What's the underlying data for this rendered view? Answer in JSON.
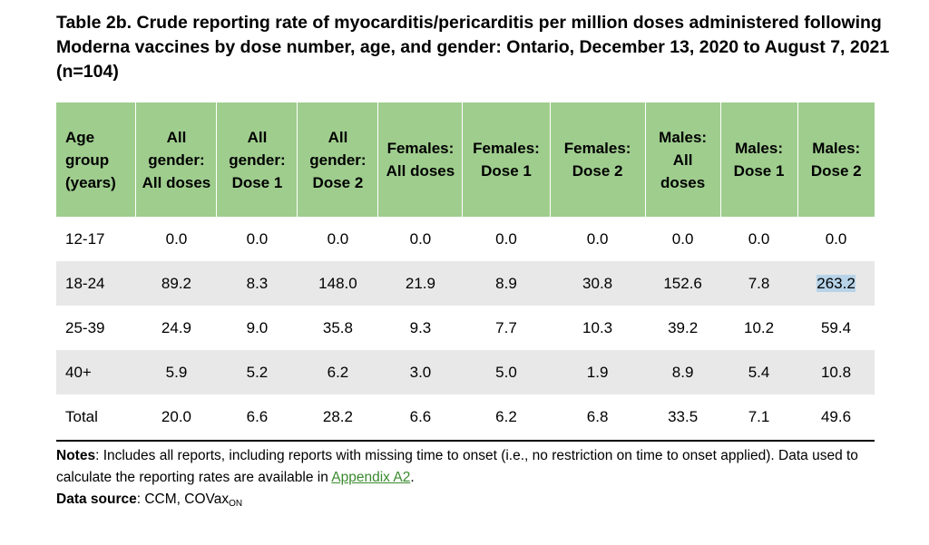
{
  "title": "Table 2b. Crude reporting rate of myocarditis/pericarditis per million doses administered following Moderna vaccines by dose number, age, and gender: Ontario, December 13, 2020 to August 7, 2021 (n=104)",
  "table": {
    "headers": [
      "Age group (years)",
      "All gender: All doses",
      "All gender: Dose 1",
      "All gender: Dose 2",
      "Females: All doses",
      "Females: Dose 1",
      "Females: Dose 2",
      "Males: All doses",
      "Males: Dose 1",
      "Males: Dose 2"
    ],
    "rows": [
      [
        "12-17",
        "0.0",
        "0.0",
        "0.0",
        "0.0",
        "0.0",
        "0.0",
        "0.0",
        "0.0",
        "0.0"
      ],
      [
        "18-24",
        "89.2",
        "8.3",
        "148.0",
        "21.9",
        "8.9",
        "30.8",
        "152.6",
        "7.8",
        "263.2"
      ],
      [
        "25-39",
        "24.9",
        "9.0",
        "35.8",
        "9.3",
        "7.7",
        "10.3",
        "39.2",
        "10.2",
        "59.4"
      ],
      [
        "40+",
        "5.9",
        "5.2",
        "6.2",
        "3.0",
        "5.0",
        "1.9",
        "8.9",
        "5.4",
        "10.8"
      ],
      [
        "Total",
        "20.0",
        "6.6",
        "28.2",
        "6.6",
        "6.2",
        "6.8",
        "33.5",
        "7.1",
        "49.6"
      ]
    ]
  },
  "notes": {
    "label": "Notes",
    "text": ": Includes all reports, including reports with missing time to onset (i.e., no restriction on time to onset applied). Data used to calculate the reporting rates are available in ",
    "link": "Appendix A2",
    "end": "."
  },
  "source": {
    "label": "Data source",
    "text": ": CCM, COVax",
    "subscript": "ON"
  },
  "colors": {
    "header_bg": "#9fcd8e",
    "alt_row_bg": "#e8e8e8",
    "link": "#3a8a2e",
    "selection": "#b7d3e8"
  }
}
